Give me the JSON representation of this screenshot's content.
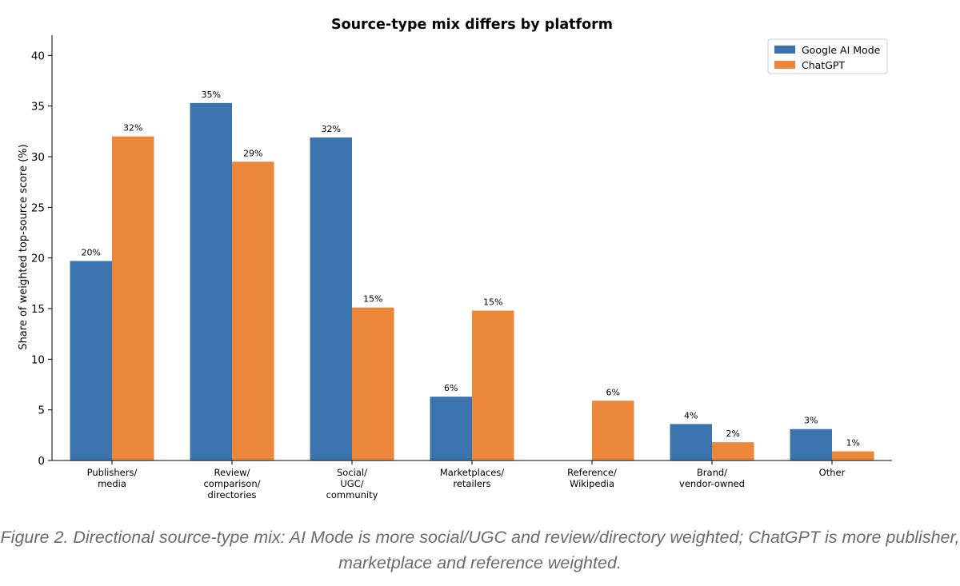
{
  "caption": {
    "line1": "Figure 2. Directional source-type mix: AI Mode is more social/UGC and review/directory weighted; ChatGPT is more publisher,",
    "line2": "marketplace and reference weighted."
  },
  "chart_data": {
    "type": "bar",
    "title": "Source-type mix differs by platform",
    "xlabel": "",
    "ylabel": "Share of weighted top-source score (%)",
    "ylim": [
      0,
      42
    ],
    "yticks": [
      0,
      5,
      10,
      15,
      20,
      25,
      30,
      35,
      40
    ],
    "grid": false,
    "legend": "top-right",
    "categories": [
      [
        "Publishers/",
        "media"
      ],
      [
        "Review/",
        "comparison/",
        "directories"
      ],
      [
        "Social/",
        "UGC/",
        "community"
      ],
      [
        "Marketplaces/",
        "retailers"
      ],
      [
        "Reference/",
        "Wikipedia"
      ],
      [
        "Brand/",
        "vendor-owned"
      ],
      [
        "Other"
      ]
    ],
    "series": [
      {
        "name": "Google AI Mode",
        "color": "#3a73ae",
        "values": [
          19.7,
          35.3,
          31.9,
          6.3,
          0,
          3.6,
          3.1
        ],
        "labels": [
          "20%",
          "35%",
          "32%",
          "6%",
          "",
          "4%",
          "3%"
        ]
      },
      {
        "name": "ChatGPT",
        "color": "#ec8638",
        "values": [
          32.0,
          29.5,
          15.1,
          14.8,
          5.9,
          1.8,
          0.9
        ],
        "labels": [
          "32%",
          "29%",
          "15%",
          "15%",
          "6%",
          "2%",
          "1%"
        ]
      }
    ]
  }
}
